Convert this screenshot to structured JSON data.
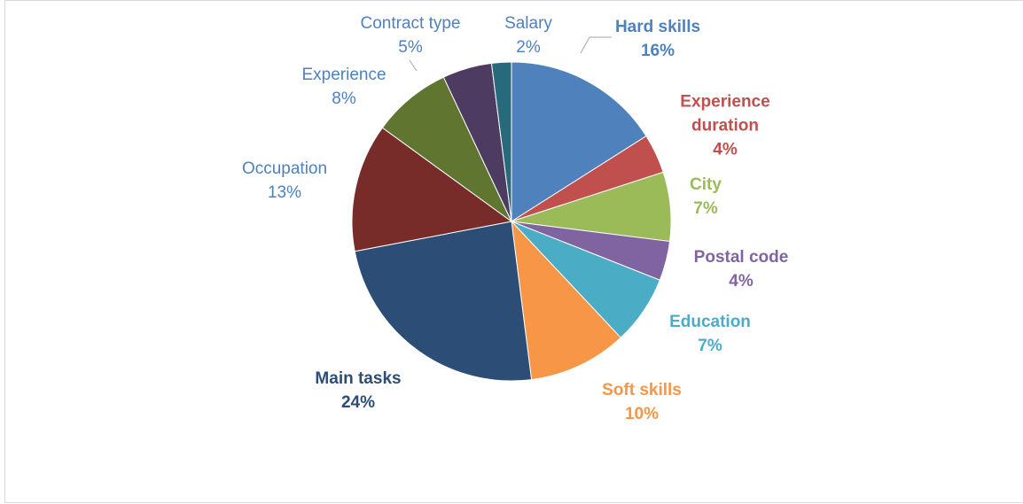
{
  "chart_data": {
    "type": "pie",
    "categories": [
      "Hard skills",
      "Experience duration",
      "City",
      "Postal code",
      "Education",
      "Soft skills",
      "Main tasks",
      "Occupation",
      "Experience",
      "Contract type",
      "Salary"
    ],
    "values": [
      16,
      4,
      7,
      4,
      7,
      10,
      24,
      13,
      8,
      5,
      2
    ],
    "value_labels": [
      "16%",
      "4%",
      "7%",
      "4%",
      "7%",
      "10%",
      "24%",
      "13%",
      "8%",
      "5%",
      "2%"
    ],
    "colors": [
      "#4f81bd",
      "#c0504d",
      "#9bbb59",
      "#8064a2",
      "#4bacc6",
      "#f79646",
      "#2c4d75",
      "#772c2a",
      "#5f7530",
      "#4d3b62",
      "#276a7c"
    ]
  }
}
